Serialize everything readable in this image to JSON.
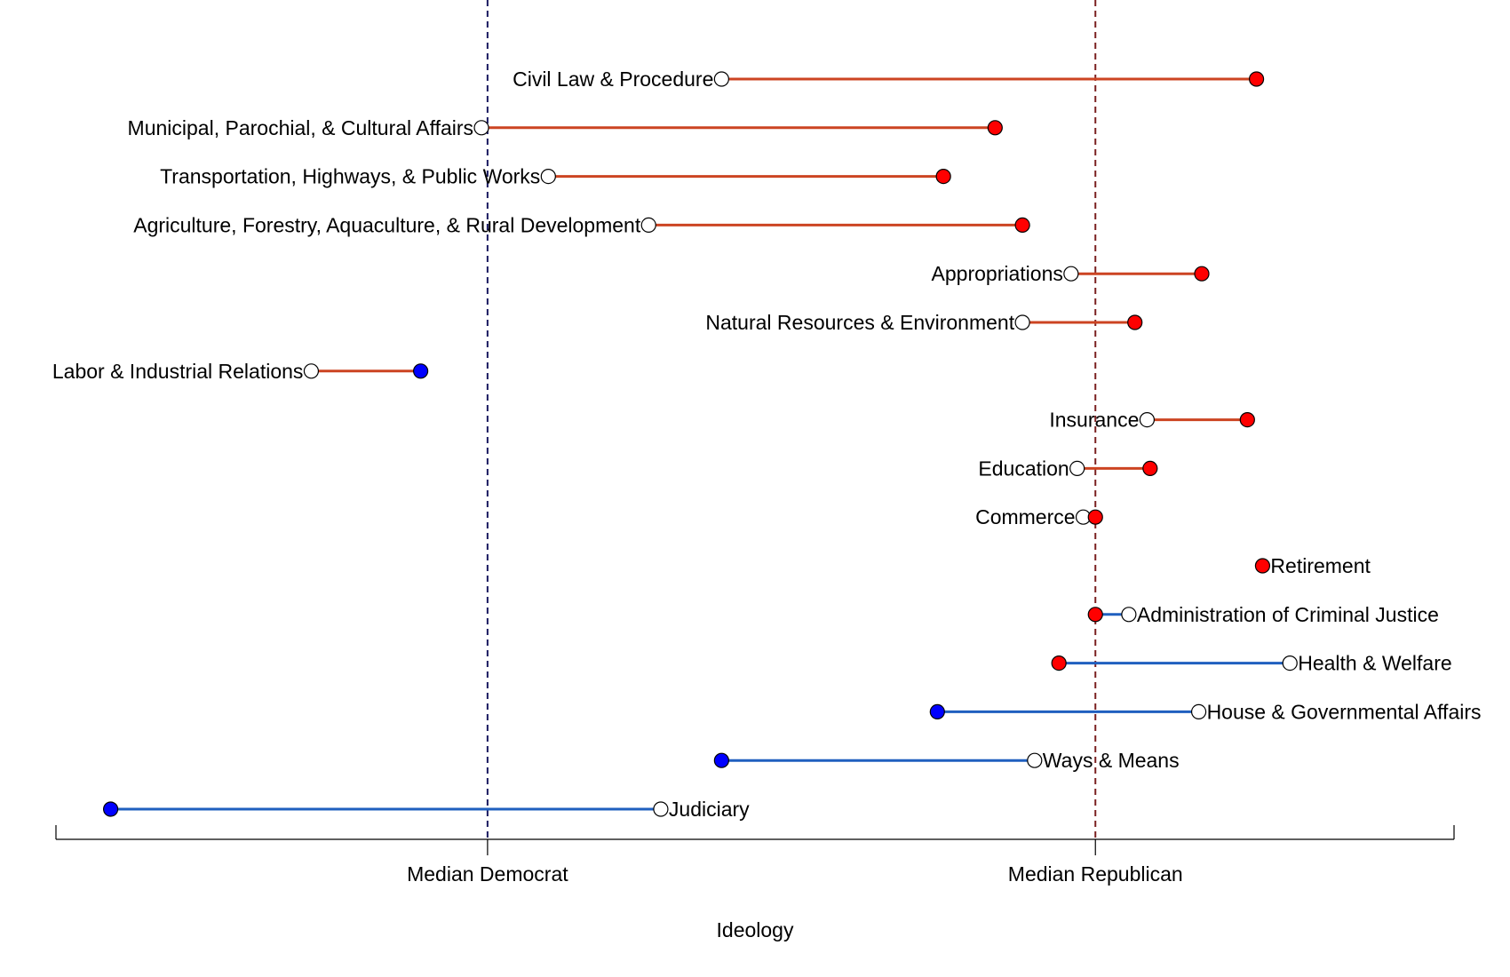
{
  "chart_data": {
    "type": "dumbbell",
    "xlabel": "Ideology",
    "ylabel": "",
    "title": "",
    "xlim": [
      -0.71,
      1.59
    ],
    "x_ticks": [
      {
        "label": "Median Democrat",
        "value": 0
      },
      {
        "label": "Median Republican",
        "value": 1
      }
    ],
    "reference_lines": [
      {
        "value": 0,
        "color": "#1a1a60",
        "style": "dashed"
      },
      {
        "value": 1,
        "color": "#7a2020",
        "style": "dashed"
      }
    ],
    "colors": {
      "red_point": "#ff0000",
      "blue_point": "#0000ff",
      "open_point": "#ffffff",
      "line_rightward": "#cc4422",
      "line_leftward": "#1f5fbf"
    },
    "rows": [
      {
        "label": "Civil Law & Procedure",
        "open": 0.385,
        "filled": 1.265,
        "filled_color": "red",
        "label_side": "left"
      },
      {
        "label": "Municipal, Parochial, & Cultural Affairs",
        "open": -0.01,
        "filled": 0.835,
        "filled_color": "red",
        "label_side": "left"
      },
      {
        "label": "Transportation, Highways, & Public Works",
        "open": 0.1,
        "filled": 0.75,
        "filled_color": "red",
        "label_side": "left"
      },
      {
        "label": "Agriculture, Forestry, Aquaculture, & Rural Development",
        "open": 0.265,
        "filled": 0.88,
        "filled_color": "red",
        "label_side": "left"
      },
      {
        "label": "Appropriations",
        "open": 0.96,
        "filled": 1.175,
        "filled_color": "red",
        "label_side": "left"
      },
      {
        "label": "Natural Resources & Environment",
        "open": 0.88,
        "filled": 1.065,
        "filled_color": "red",
        "label_side": "left"
      },
      {
        "label": "Labor & Industrial Relations",
        "open": -0.29,
        "filled": -0.11,
        "filled_color": "blue",
        "label_side": "left"
      },
      {
        "label": "Insurance",
        "open": 1.085,
        "filled": 1.25,
        "filled_color": "red",
        "label_side": "left"
      },
      {
        "label": "Education",
        "open": 0.97,
        "filled": 1.09,
        "filled_color": "red",
        "label_side": "left"
      },
      {
        "label": "Commerce",
        "open": 0.98,
        "filled": 1.0,
        "filled_color": "red",
        "label_side": "left"
      },
      {
        "label": "Retirement",
        "open": 1.275,
        "filled": 1.275,
        "filled_color": "red",
        "label_side": "right",
        "open_visible": false
      },
      {
        "label": "Administration of Criminal Justice",
        "open": 1.055,
        "filled": 1.0,
        "filled_color": "red",
        "label_side": "right"
      },
      {
        "label": "Health & Welfare",
        "open": 1.32,
        "filled": 0.94,
        "filled_color": "red",
        "label_side": "right"
      },
      {
        "label": "House & Governmental Affairs",
        "open": 1.17,
        "filled": 0.74,
        "filled_color": "blue",
        "label_side": "right"
      },
      {
        "label": "Ways & Means",
        "open": 0.9,
        "filled": 0.385,
        "filled_color": "blue",
        "label_side": "right"
      },
      {
        "label": "Judiciary",
        "open": 0.285,
        "filled": -0.62,
        "filled_color": "blue",
        "label_side": "right"
      }
    ]
  }
}
